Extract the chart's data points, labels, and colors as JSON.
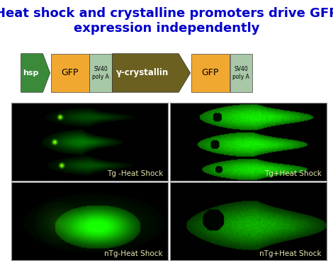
{
  "title_line1": "Heat shock and crystalline promoters drive GFP",
  "title_line2": "expression independently",
  "title_color": "#0000CC",
  "title_fontsize": 13.0,
  "title_fontweight": "bold",
  "background_color": "#ffffff",
  "panel_labels": [
    "Tg -Heat Shock",
    "Tg+Heat Shock",
    "nTg-Heat Shock",
    "nTg+Heat Shock"
  ],
  "panel_label_color": "#e8e8b0",
  "panel_label_fontsize": 7.5,
  "grid_color": "#888888",
  "hsp_color": "#3a8a3a",
  "gfp_color": "#f0a830",
  "sv40_color": "#a8c8a8",
  "gamma_color": "#6b6020"
}
